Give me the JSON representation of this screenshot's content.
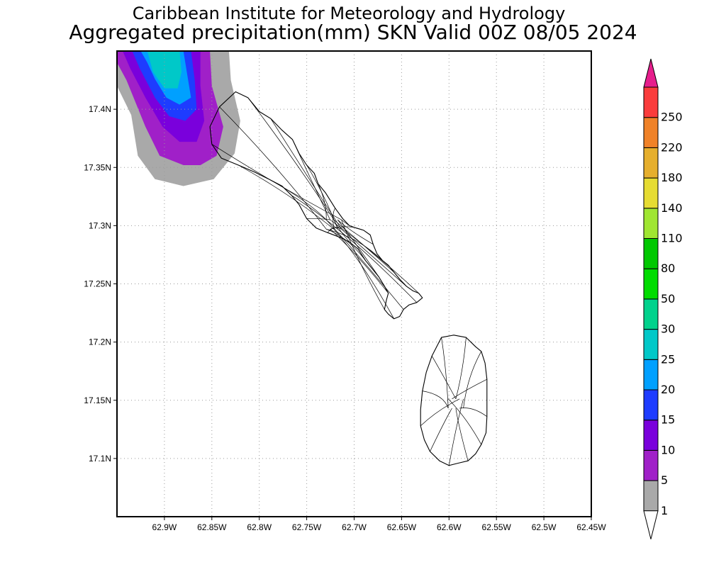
{
  "header": {
    "title": "Caribbean Institute for Meteorology and Hydrology",
    "subtitle": "Aggregated precipitation(mm) SKN Valid 00Z 08/05 2024"
  },
  "map": {
    "lon_range": [
      -62.95,
      -62.45
    ],
    "lat_range": [
      17.05,
      17.45
    ],
    "lon_ticks": [
      {
        "value": -62.9,
        "label": "62.9W"
      },
      {
        "value": -62.85,
        "label": "62.85W"
      },
      {
        "value": -62.8,
        "label": "62.8W"
      },
      {
        "value": -62.75,
        "label": "62.75W"
      },
      {
        "value": -62.7,
        "label": "62.7W"
      },
      {
        "value": -62.65,
        "label": "62.65W"
      },
      {
        "value": -62.6,
        "label": "62.6W"
      },
      {
        "value": -62.55,
        "label": "62.55W"
      },
      {
        "value": -62.5,
        "label": "62.5W"
      },
      {
        "value": -62.45,
        "label": "62.45W"
      }
    ],
    "lat_ticks": [
      {
        "value": 17.4,
        "label": "17.4N"
      },
      {
        "value": 17.35,
        "label": "17.35N"
      },
      {
        "value": 17.3,
        "label": "17.3N"
      },
      {
        "value": 17.25,
        "label": "17.25N"
      },
      {
        "value": 17.2,
        "label": "17.2N"
      },
      {
        "value": 17.15,
        "label": "17.15N"
      },
      {
        "value": 17.1,
        "label": "17.1N"
      }
    ],
    "grid": true,
    "islands": [
      {
        "outline": [
          [
            -62.842,
            17.402
          ],
          [
            -62.825,
            17.415
          ],
          [
            -62.812,
            17.41
          ],
          [
            -62.8,
            17.398
          ],
          [
            -62.788,
            17.392
          ],
          [
            -62.776,
            17.382
          ],
          [
            -62.765,
            17.374
          ],
          [
            -62.758,
            17.362
          ],
          [
            -62.75,
            17.352
          ],
          [
            -62.742,
            17.345
          ],
          [
            -62.738,
            17.336
          ],
          [
            -62.73,
            17.328
          ],
          [
            -62.72,
            17.315
          ],
          [
            -62.712,
            17.306
          ],
          [
            -62.705,
            17.3
          ],
          [
            -62.698,
            17.298
          ],
          [
            -62.69,
            17.296
          ],
          [
            -62.683,
            17.292
          ],
          [
            -62.68,
            17.284
          ],
          [
            -62.676,
            17.276
          ],
          [
            -62.67,
            17.27
          ],
          [
            -62.664,
            17.266
          ],
          [
            -62.658,
            17.26
          ],
          [
            -62.652,
            17.254
          ],
          [
            -62.645,
            17.248
          ],
          [
            -62.638,
            17.244
          ],
          [
            -62.632,
            17.242
          ],
          [
            -62.628,
            17.238
          ],
          [
            -62.634,
            17.234
          ],
          [
            -62.642,
            17.232
          ],
          [
            -62.648,
            17.228
          ],
          [
            -62.652,
            17.222
          ],
          [
            -62.658,
            17.22
          ],
          [
            -62.664,
            17.224
          ],
          [
            -62.668,
            17.228
          ],
          [
            -62.666,
            17.236
          ],
          [
            -62.664,
            17.242
          ],
          [
            -62.668,
            17.248
          ],
          [
            -62.674,
            17.256
          ],
          [
            -62.68,
            17.262
          ],
          [
            -62.688,
            17.27
          ],
          [
            -62.696,
            17.28
          ],
          [
            -62.705,
            17.286
          ],
          [
            -62.715,
            17.29
          ],
          [
            -62.728,
            17.294
          ],
          [
            -62.74,
            17.298
          ],
          [
            -62.75,
            17.306
          ],
          [
            -62.758,
            17.318
          ],
          [
            -62.766,
            17.326
          ],
          [
            -62.776,
            17.334
          ],
          [
            -62.79,
            17.34
          ],
          [
            -62.805,
            17.346
          ],
          [
            -62.822,
            17.352
          ],
          [
            -62.84,
            17.358
          ],
          [
            -62.85,
            17.37
          ],
          [
            -62.852,
            17.385
          ],
          [
            -62.842,
            17.402
          ]
        ]
      },
      {
        "outline": [
          [
            -62.608,
            17.204
          ],
          [
            -62.595,
            17.206
          ],
          [
            -62.582,
            17.204
          ],
          [
            -62.572,
            17.196
          ],
          [
            -62.566,
            17.192
          ],
          [
            -62.562,
            17.182
          ],
          [
            -62.56,
            17.168
          ],
          [
            -62.56,
            17.152
          ],
          [
            -62.56,
            17.136
          ],
          [
            -62.561,
            17.122
          ],
          [
            -62.566,
            17.112
          ],
          [
            -62.572,
            17.104
          ],
          [
            -62.58,
            17.098
          ],
          [
            -62.59,
            17.096
          ],
          [
            -62.6,
            17.094
          ],
          [
            -62.61,
            17.098
          ],
          [
            -62.62,
            17.106
          ],
          [
            -62.626,
            17.116
          ],
          [
            -62.63,
            17.128
          ],
          [
            -62.63,
            17.142
          ],
          [
            -62.628,
            17.158
          ],
          [
            -62.624,
            17.174
          ],
          [
            -62.618,
            17.188
          ],
          [
            -62.608,
            17.204
          ]
        ]
      }
    ],
    "precip_regions": [
      {
        "class": "1-5",
        "color": "#a9a9a9",
        "outline": [
          [
            -62.95,
            17.45
          ],
          [
            -62.832,
            17.45
          ],
          [
            -62.83,
            17.425
          ],
          [
            -62.82,
            17.39
          ],
          [
            -62.826,
            17.362
          ],
          [
            -62.848,
            17.34
          ],
          [
            -62.88,
            17.334
          ],
          [
            -62.91,
            17.34
          ],
          [
            -62.928,
            17.36
          ],
          [
            -62.935,
            17.395
          ],
          [
            -62.95,
            17.42
          ]
        ]
      },
      {
        "class": "5-10",
        "color": "#a020c8",
        "outline": [
          [
            -62.95,
            17.45
          ],
          [
            -62.852,
            17.45
          ],
          [
            -62.85,
            17.42
          ],
          [
            -62.838,
            17.385
          ],
          [
            -62.845,
            17.36
          ],
          [
            -62.862,
            17.352
          ],
          [
            -62.88,
            17.352
          ],
          [
            -62.905,
            17.36
          ],
          [
            -62.92,
            17.385
          ],
          [
            -62.94,
            17.425
          ],
          [
            -62.95,
            17.44
          ]
        ]
      },
      {
        "class": "10-15",
        "color": "#7a00dc",
        "outline": [
          [
            -62.944,
            17.45
          ],
          [
            -62.862,
            17.45
          ],
          [
            -62.862,
            17.42
          ],
          [
            -62.858,
            17.39
          ],
          [
            -62.866,
            17.372
          ],
          [
            -62.884,
            17.372
          ],
          [
            -62.902,
            17.385
          ],
          [
            -62.92,
            17.41
          ],
          [
            -62.936,
            17.435
          ]
        ]
      },
      {
        "class": "15-20",
        "color": "#1e3cff",
        "outline": [
          [
            -62.934,
            17.45
          ],
          [
            -62.872,
            17.45
          ],
          [
            -62.868,
            17.425
          ],
          [
            -62.866,
            17.4
          ],
          [
            -62.878,
            17.39
          ],
          [
            -62.895,
            17.394
          ],
          [
            -62.91,
            17.41
          ],
          [
            -62.926,
            17.435
          ]
        ]
      },
      {
        "class": "20-25",
        "color": "#00a0ff",
        "outline": [
          [
            -62.925,
            17.45
          ],
          [
            -62.88,
            17.45
          ],
          [
            -62.876,
            17.43
          ],
          [
            -62.872,
            17.41
          ],
          [
            -62.884,
            17.404
          ],
          [
            -62.898,
            17.41
          ],
          [
            -62.91,
            17.426
          ],
          [
            -62.918,
            17.44
          ]
        ]
      },
      {
        "class": "25-30",
        "color": "#00c8c8",
        "outline": [
          [
            -62.918,
            17.45
          ],
          [
            -62.884,
            17.45
          ],
          [
            -62.882,
            17.432
          ],
          [
            -62.886,
            17.418
          ],
          [
            -62.9,
            17.418
          ],
          [
            -62.912,
            17.432
          ]
        ]
      }
    ]
  },
  "colorbar": {
    "levels": [
      "1",
      "5",
      "10",
      "15",
      "20",
      "25",
      "30",
      "50",
      "80",
      "110",
      "140",
      "180",
      "220",
      "250"
    ],
    "colors": [
      "#a9a9a9",
      "#a020c8",
      "#7a00dc",
      "#1e3cff",
      "#00a0ff",
      "#00c8c8",
      "#00d28c",
      "#00dc00",
      "#00c800",
      "#a0e632",
      "#e6dc32",
      "#e6af2d",
      "#f08228",
      "#fa3c3c"
    ],
    "under_color": "#ffffff",
    "over_color": "#e61e8c"
  }
}
